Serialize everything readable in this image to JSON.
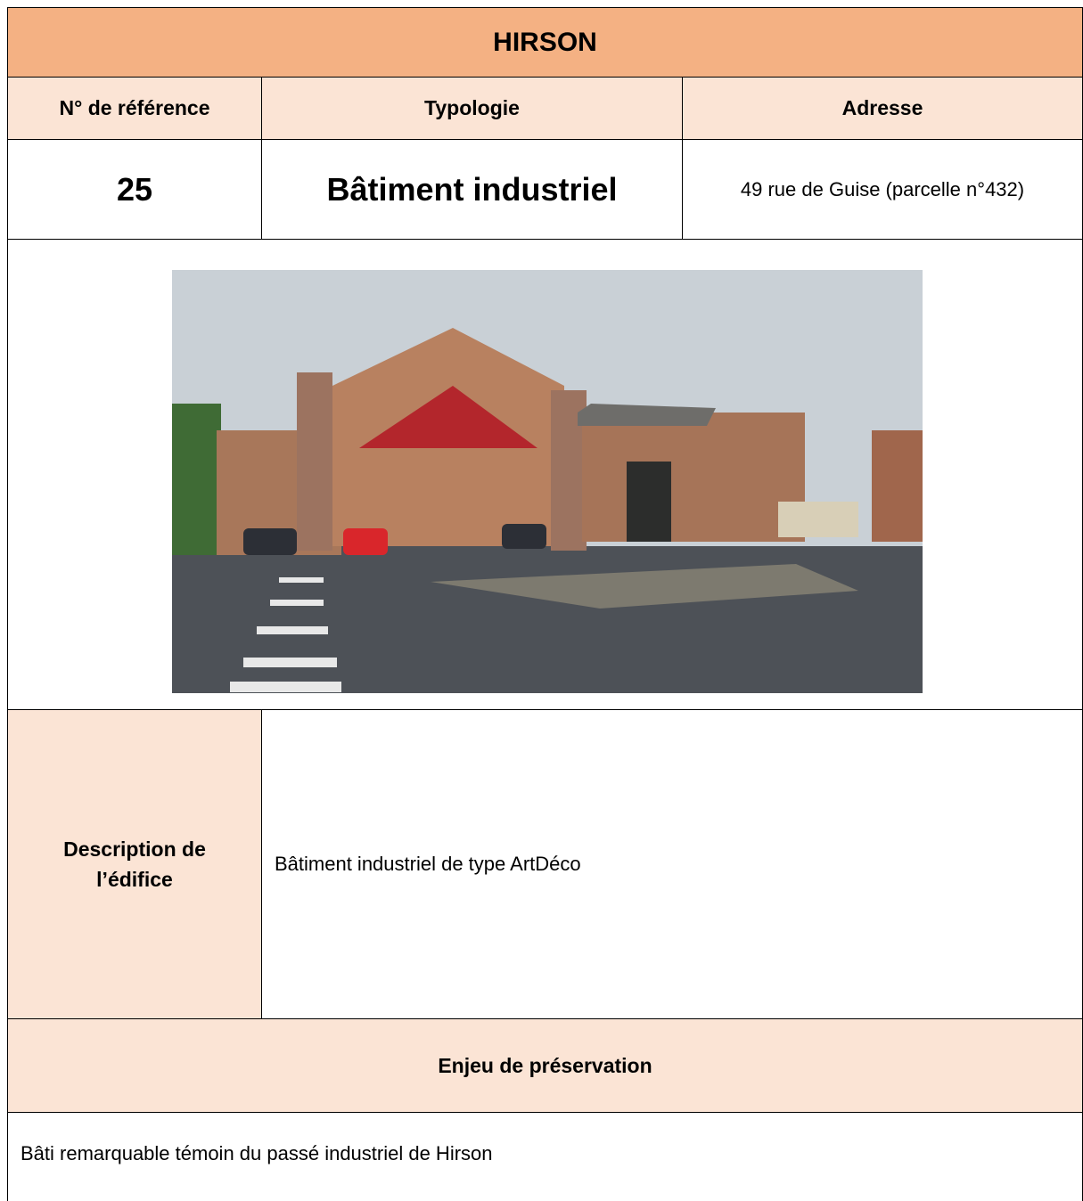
{
  "header": {
    "title": "HIRSON"
  },
  "table": {
    "columns": [
      "N° de référence",
      "Typologie",
      "Adresse"
    ],
    "row": [
      "25",
      "Bâtiment industriel",
      "49 rue de Guise (parcelle n°432)"
    ],
    "description": {
      "label": "Description de l’édifice",
      "text": "Bâtiment industriel de type ArtDéco"
    },
    "preservation": {
      "label": "Enjeu de préservation",
      "text": "Bâti remarquable témoin du passé industriel de Hirson"
    }
  }
}
